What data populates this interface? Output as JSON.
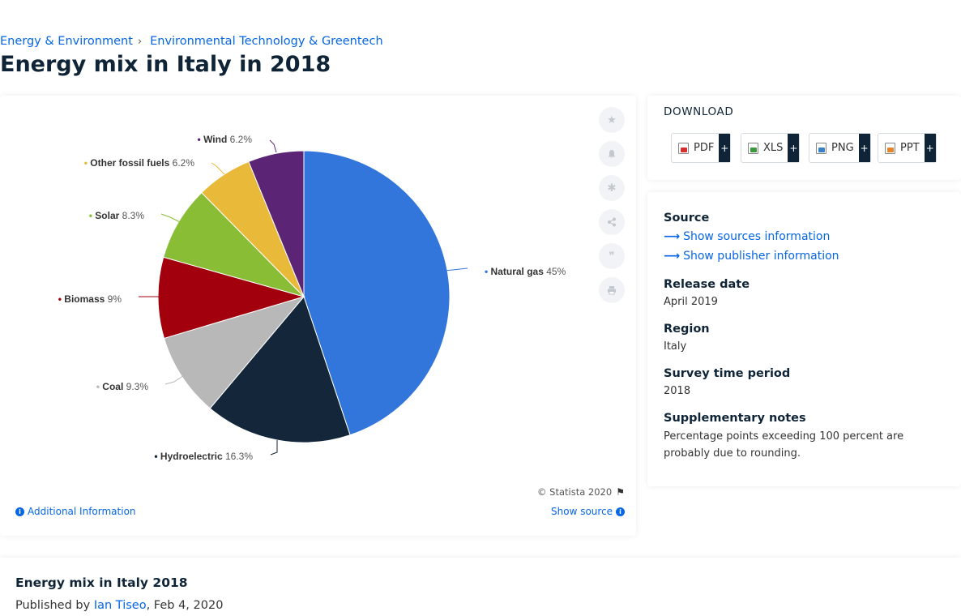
{
  "breadcrumb": [
    "Energy & Environment",
    "Environmental Technology & Greentech"
  ],
  "page_title": "Energy mix in Italy in 2018",
  "chart_data": {
    "type": "pie",
    "categories": [
      "Natural gas",
      "Hydroelectric",
      "Coal",
      "Biomass",
      "Solar",
      "Other fossil fuels",
      "Wind"
    ],
    "values": [
      45,
      16.3,
      9.3,
      9,
      8.3,
      6.2,
      6.2
    ],
    "value_labels": [
      "45%",
      "16.3%",
      "9.3%",
      "9%",
      "8.3%",
      "6.2%",
      "6.2%"
    ],
    "colors": [
      "#3276dc",
      "#13263a",
      "#b8b8b8",
      "#a2000d",
      "#89bd36",
      "#e9b93a",
      "#5c2474"
    ],
    "start_angle_deg": 0,
    "direction": "clockwise"
  },
  "chart_tools": [
    "star-icon",
    "bell-icon",
    "gear-icon",
    "share-icon",
    "quote-icon",
    "print-icon"
  ],
  "copyright": "© Statista 2020",
  "additional_info": "Additional Information",
  "show_source": "Show source",
  "download": {
    "title": "DOWNLOAD",
    "buttons": [
      {
        "label": "PDF",
        "color": "#d32f2f"
      },
      {
        "label": "XLS",
        "color": "#3c9a3c"
      },
      {
        "label": "PNG",
        "color": "#3a80c9"
      },
      {
        "label": "PPT",
        "color": "#e8832a"
      }
    ],
    "plus": "+"
  },
  "meta": {
    "source_heading": "Source",
    "show_sources": "Show sources information",
    "show_publisher": "Show publisher information",
    "release_heading": "Release date",
    "release_value": "April 2019",
    "region_heading": "Region",
    "region_value": "Italy",
    "survey_heading": "Survey time period",
    "survey_value": "2018",
    "notes_heading": "Supplementary notes",
    "notes_value": "Percentage points exceeding 100 percent are probably due to rounding."
  },
  "bottom": {
    "title": "Energy mix in Italy 2018",
    "published_prefix": "Published by",
    "author": "Ian Tiseo",
    "date": ", Feb 4, 2020"
  }
}
